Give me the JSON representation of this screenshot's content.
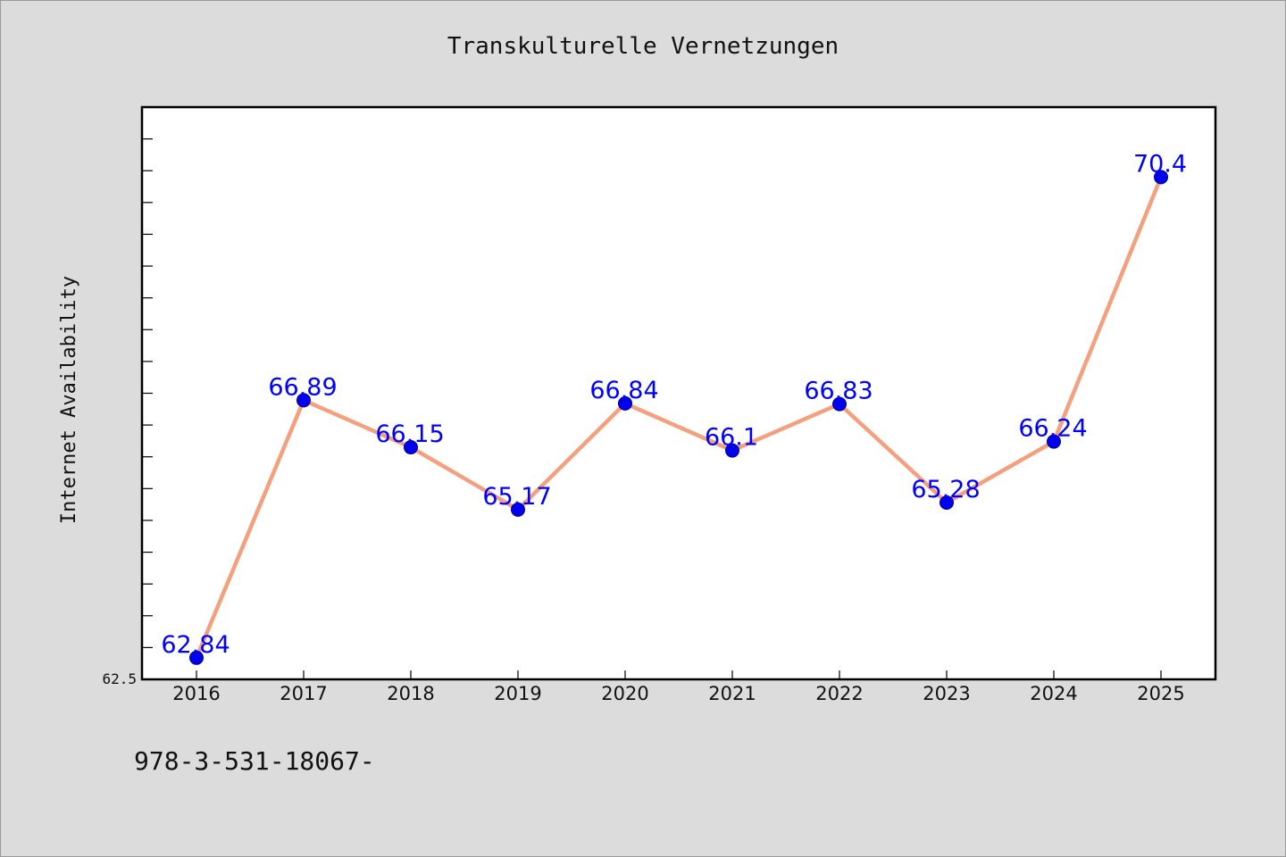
{
  "chart_data": {
    "type": "line",
    "title": "Transkulturelle Vernetzungen",
    "xlabel": "",
    "ylabel": "Internet Availability",
    "categories": [
      "2016",
      "2017",
      "2018",
      "2019",
      "2020",
      "2021",
      "2022",
      "2023",
      "2024",
      "2025"
    ],
    "series": [
      {
        "values": [
          62.84,
          66.89,
          66.15,
          65.17,
          66.84,
          66.1,
          66.83,
          65.28,
          66.24,
          70.4
        ],
        "labels": [
          "62.84",
          "66.89",
          "66.15",
          "65.17",
          "66.84",
          "66.1",
          "66.83",
          "65.28",
          "66.24",
          "70.4"
        ],
        "line_color": "#f4a07e",
        "marker_color": "#0000ee",
        "label_color": "#0000ff"
      }
    ],
    "ylim": [
      62.5,
      71.5
    ],
    "y_tick_labels": [
      "62.5"
    ],
    "y_minor_step": 0.5,
    "grid": false,
    "legend": "none"
  },
  "footer": {
    "isbn": "978-3-531-18067-"
  },
  "colors": {
    "background": "#dcdcdc",
    "plot_background": "#ffffff",
    "axis": "#000000"
  }
}
